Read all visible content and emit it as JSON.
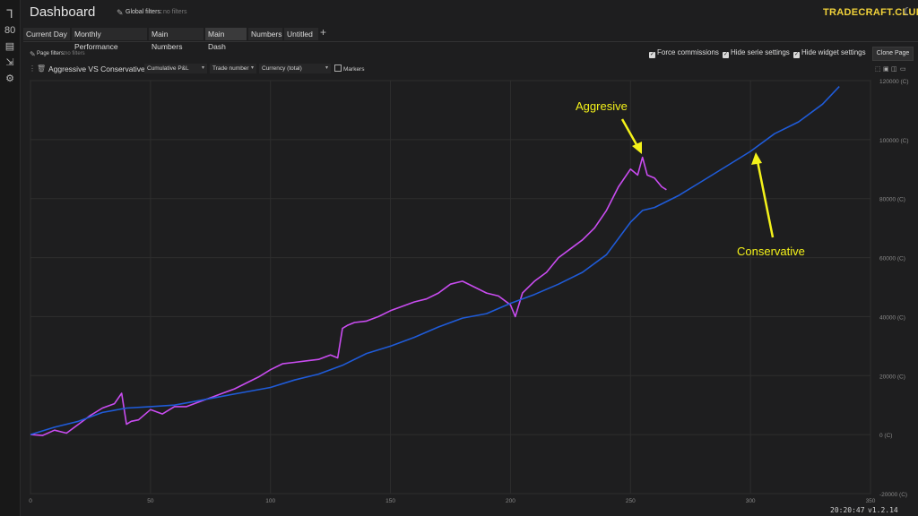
{
  "app": {
    "title": "Dashboard",
    "brand": "TRADECRAFT.CLUB",
    "global_filters_label": "Global filters:",
    "global_filters_value": "no filters"
  },
  "sidebar": {
    "items": [
      {
        "name": "logo-icon",
        "glyph": "Ꞁ"
      },
      {
        "name": "dashboard-icon",
        "glyph": "80"
      },
      {
        "name": "journal-icon",
        "glyph": "▤"
      },
      {
        "name": "import-icon",
        "glyph": "⇲"
      },
      {
        "name": "settings-icon",
        "glyph": "⚙"
      }
    ]
  },
  "tabs": [
    {
      "label": "Current Day"
    },
    {
      "label": "Monthly Performance"
    },
    {
      "label": "Main Numbers"
    },
    {
      "label": "Main Dash",
      "active": true
    },
    {
      "label": "Numbers"
    },
    {
      "label": "Untitled"
    }
  ],
  "page": {
    "filters_label": "Page filters:",
    "filters_value": "no filters",
    "force_commissions": "Force commissions",
    "hide_serie_settings": "Hide serie settings",
    "hide_widget_settings": "Hide widget settings",
    "clone_button": "Clone Page"
  },
  "widget": {
    "title": "Aggressive VS Conservative",
    "metric": "Cumulative P&L",
    "x_axis": "Trade number",
    "unit": "Currency (total)",
    "markers": "Markers"
  },
  "status": {
    "clock": "20:20:47",
    "version": "v1.2.14"
  },
  "annotations": {
    "aggressive": "Aggresive",
    "conservative": "Conservative"
  },
  "colors": {
    "aggressive": "#c94cf0",
    "conservative": "#1f5bd8",
    "annotation": "#f4f21a",
    "brand": "#f1d23a"
  },
  "chart_data": {
    "type": "line",
    "xlim": [
      0,
      350
    ],
    "ylim": [
      -20000,
      120000
    ],
    "x_ticks": [
      "0",
      "50",
      "100",
      "150",
      "200",
      "250",
      "300",
      "350"
    ],
    "y_ticks": [
      "120000 (C)",
      "100000 (C)",
      "80000 (C)",
      "60000 (C)",
      "40000 (C)",
      "20000 (C)",
      "0 (C)",
      "-20000 (C)"
    ],
    "series": [
      {
        "name": "Aggressive",
        "x": [
          0,
          5,
          10,
          15,
          20,
          25,
          30,
          35,
          38,
          40,
          42,
          45,
          50,
          55,
          60,
          65,
          70,
          75,
          80,
          85,
          90,
          95,
          100,
          105,
          110,
          115,
          120,
          125,
          128,
          130,
          132,
          135,
          140,
          145,
          150,
          155,
          160,
          165,
          170,
          175,
          180,
          185,
          190,
          195,
          200,
          202,
          205,
          210,
          215,
          220,
          225,
          230,
          235,
          240,
          245,
          250,
          253,
          255,
          257,
          260,
          263,
          265
        ],
        "y": [
          0,
          -300,
          1500,
          500,
          3500,
          6500,
          9000,
          10500,
          14000,
          3500,
          4500,
          5000,
          8500,
          7000,
          9500,
          9500,
          11000,
          12500,
          14000,
          15500,
          17500,
          19500,
          22000,
          24000,
          24500,
          25000,
          25500,
          27000,
          26000,
          36000,
          37000,
          38000,
          38500,
          40000,
          42000,
          43500,
          45000,
          46000,
          48000,
          51000,
          52000,
          50000,
          48000,
          47000,
          44000,
          40000,
          48000,
          52000,
          55000,
          60000,
          63000,
          66000,
          70000,
          76000,
          84000,
          90000,
          88000,
          94000,
          88000,
          87000,
          84000,
          83000
        ]
      },
      {
        "name": "Conservative",
        "x": [
          0,
          10,
          20,
          30,
          40,
          50,
          60,
          70,
          80,
          90,
          100,
          110,
          120,
          130,
          140,
          150,
          160,
          170,
          180,
          190,
          200,
          210,
          220,
          230,
          240,
          250,
          255,
          260,
          270,
          280,
          290,
          300,
          310,
          320,
          330,
          337
        ],
        "y": [
          0,
          2500,
          4500,
          7500,
          9000,
          9500,
          10000,
          11500,
          13000,
          14500,
          16000,
          18500,
          20500,
          23500,
          27500,
          30000,
          33000,
          36500,
          39500,
          41000,
          44500,
          47500,
          51000,
          55000,
          61000,
          72000,
          76000,
          77000,
          81000,
          86000,
          91000,
          96000,
          102000,
          106000,
          112000,
          118000
        ]
      }
    ]
  }
}
